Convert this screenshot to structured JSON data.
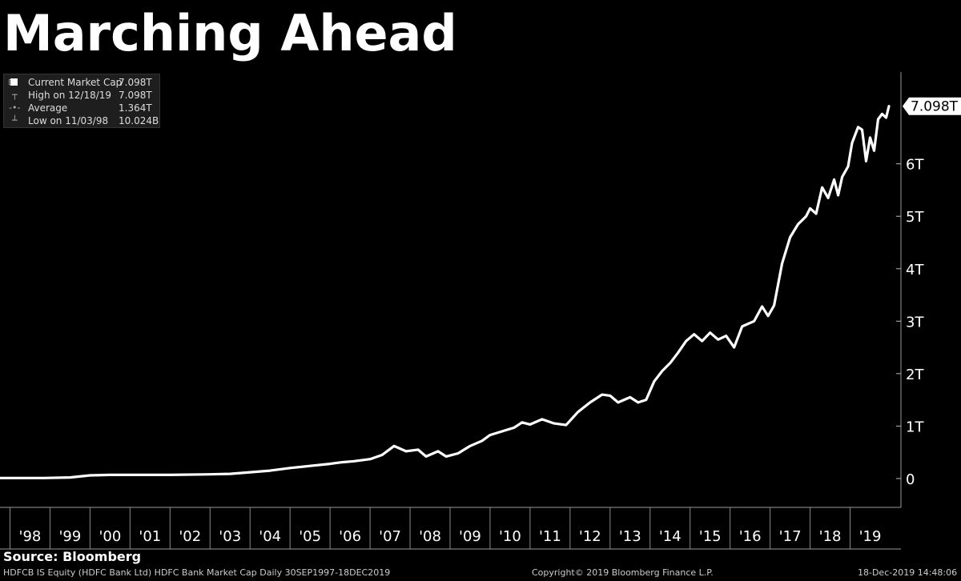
{
  "chart_data": {
    "type": "line",
    "title": "Marching Ahead",
    "xlabel": "",
    "ylabel": "",
    "x_range": [
      1997.75,
      2019.97
    ],
    "ylim": [
      -0.55,
      7.75
    ],
    "y_ticks": [
      {
        "value": 0,
        "label": "0"
      },
      {
        "value": 1,
        "label": "1T"
      },
      {
        "value": 2,
        "label": "2T"
      },
      {
        "value": 3,
        "label": "3T"
      },
      {
        "value": 4,
        "label": "4T"
      },
      {
        "value": 5,
        "label": "5T"
      },
      {
        "value": 6,
        "label": "6T"
      }
    ],
    "x_ticks": [
      "'98",
      "'99",
      "'00",
      "'01",
      "'02",
      "'03",
      "'04",
      "'05",
      "'06",
      "'07",
      "'08",
      "'09",
      "'10",
      "'11",
      "'12",
      "'13",
      "'14",
      "'15",
      "'16",
      "'17",
      "'18",
      "'19"
    ],
    "last_value_label": "7.098T",
    "grid": false,
    "legend_position": "top-left",
    "series": [
      {
        "name": "Current Market Cap",
        "color": "#ffffff",
        "x": [
          1997.75,
          1998.84,
          1999.5,
          2000.0,
          2000.5,
          2001.0,
          2002.0,
          2003.0,
          2003.5,
          2004.0,
          2004.5,
          2005.0,
          2005.5,
          2006.0,
          2006.3,
          2006.6,
          2007.0,
          2007.3,
          2007.6,
          2007.9,
          2008.2,
          2008.4,
          2008.7,
          2008.9,
          2009.2,
          2009.5,
          2009.8,
          2010.0,
          2010.3,
          2010.6,
          2010.8,
          2011.0,
          2011.3,
          2011.6,
          2011.9,
          2012.2,
          2012.5,
          2012.8,
          2013.0,
          2013.2,
          2013.5,
          2013.7,
          2013.9,
          2014.1,
          2014.3,
          2014.5,
          2014.7,
          2014.9,
          2015.1,
          2015.3,
          2015.5,
          2015.7,
          2015.9,
          2016.1,
          2016.3,
          2016.6,
          2016.8,
          2016.95,
          2017.1,
          2017.3,
          2017.5,
          2017.7,
          2017.9,
          2018.0,
          2018.15,
          2018.3,
          2018.45,
          2018.6,
          2018.7,
          2018.8,
          2018.95,
          2019.05,
          2019.2,
          2019.3,
          2019.4,
          2019.5,
          2019.6,
          2019.7,
          2019.8,
          2019.9,
          2019.97
        ],
        "values": [
          0.01,
          0.01,
          0.02,
          0.06,
          0.07,
          0.07,
          0.07,
          0.08,
          0.09,
          0.12,
          0.15,
          0.2,
          0.24,
          0.28,
          0.31,
          0.33,
          0.37,
          0.45,
          0.62,
          0.52,
          0.55,
          0.42,
          0.52,
          0.42,
          0.48,
          0.62,
          0.72,
          0.83,
          0.9,
          0.97,
          1.07,
          1.03,
          1.13,
          1.05,
          1.02,
          1.27,
          1.45,
          1.6,
          1.58,
          1.45,
          1.55,
          1.45,
          1.5,
          1.85,
          2.05,
          2.2,
          2.4,
          2.62,
          2.75,
          2.62,
          2.78,
          2.65,
          2.72,
          2.5,
          2.9,
          3.0,
          3.28,
          3.1,
          3.3,
          4.1,
          4.6,
          4.85,
          5.0,
          5.15,
          5.05,
          5.55,
          5.35,
          5.7,
          5.4,
          5.75,
          5.95,
          6.4,
          6.7,
          6.65,
          6.05,
          6.5,
          6.25,
          6.85,
          6.95,
          6.88,
          7.098
        ]
      }
    ]
  },
  "legend": {
    "rows": [
      {
        "icon": "⊟",
        "label": "Current Market Cap",
        "value": "7.098T"
      },
      {
        "icon": "┬",
        "label": "High on 12/18/19",
        "value": "7.098T"
      },
      {
        "icon": "-•-",
        "label": "Average",
        "value": "1.364T"
      },
      {
        "icon": "┴",
        "label": "Low on 11/03/98",
        "value": "10.024B"
      }
    ]
  },
  "source": "Source: Bloomberg",
  "footer": {
    "left": "HDFCB IS Equity (HDFC Bank Ltd) HDFC Bank Market Cap  Daily 30SEP1997-18DEC2019",
    "center": "Copyright© 2019 Bloomberg Finance L.P.",
    "right": "18-Dec-2019 14:48:06"
  }
}
